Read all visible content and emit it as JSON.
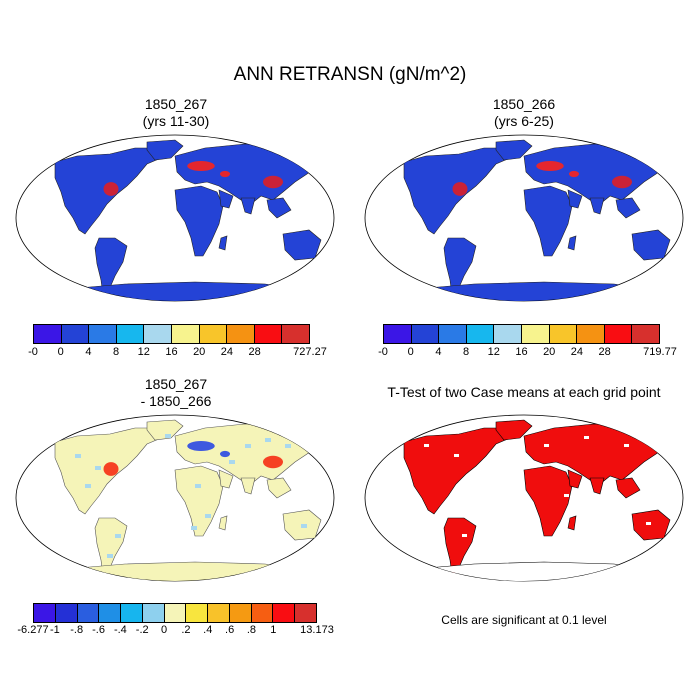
{
  "title": "ANN RETRANSN (gN/m^2)",
  "panels": [
    {
      "title_line1": "1850_267",
      "title_line2": "(yrs 11-30)",
      "type": "case",
      "color_scale": "a",
      "hotspot_colors": [
        "#de1f26",
        "#f9231c"
      ]
    },
    {
      "title_line1": "1850_266",
      "title_line2": "(yrs 6-25)",
      "type": "case",
      "color_scale": "b",
      "hotspot_colors": [
        "#de1f26",
        "#f9231c"
      ]
    },
    {
      "title_line1": "1850_267",
      "title_line2": "- 1850_266",
      "type": "diff",
      "color_scale": "diff",
      "hotspot_colors": [
        "#f62e13",
        "#2a48e3"
      ]
    },
    {
      "title_line1": "T-Test of two Case means at each grid point",
      "title_line2": "",
      "type": "ttest"
    }
  ],
  "colorbars": {
    "a": {
      "colors": [
        "#3b16e6",
        "#2443d6",
        "#2a7ae6",
        "#17b7ee",
        "#a9d8ee",
        "#f7f38e",
        "#f8c52a",
        "#f59212",
        "#f90d12",
        "#d7302d"
      ],
      "labels": [
        "-0",
        "0",
        "4",
        "8",
        "12",
        "16",
        "20",
        "24",
        "28",
        "727.27"
      ]
    },
    "b": {
      "colors": [
        "#3b16e6",
        "#2443d6",
        "#2a7ae6",
        "#17b7ee",
        "#a9d8ee",
        "#f7f38e",
        "#f8c52a",
        "#f59212",
        "#f90d12",
        "#d7302d"
      ],
      "labels": [
        "-0",
        "0",
        "4",
        "8",
        "12",
        "16",
        "20",
        "24",
        "28",
        "719.77"
      ]
    },
    "diff": {
      "colors": [
        "#3b16e6",
        "#2430d6",
        "#2a5ee0",
        "#1f8fe6",
        "#17b5ee",
        "#8ed0ee",
        "#f5f4b8",
        "#f8e53e",
        "#f8c22a",
        "#f59a12",
        "#f65e12",
        "#f90d12",
        "#d7302d"
      ],
      "labels": [
        "-6.277",
        "-1",
        "-.8",
        "-.6",
        "-.4",
        "-.2",
        "0",
        ".2",
        ".4",
        ".6",
        ".8",
        "1",
        "13.173"
      ]
    }
  },
  "map_colors": {
    "case_fill": "#2443d6",
    "diff_fill": "#f5f4b8",
    "diff_speckle": "#a9d8ee",
    "ttest_fill": "#f00d0d"
  },
  "significance_note": "Cells are significant at 0.1 level"
}
